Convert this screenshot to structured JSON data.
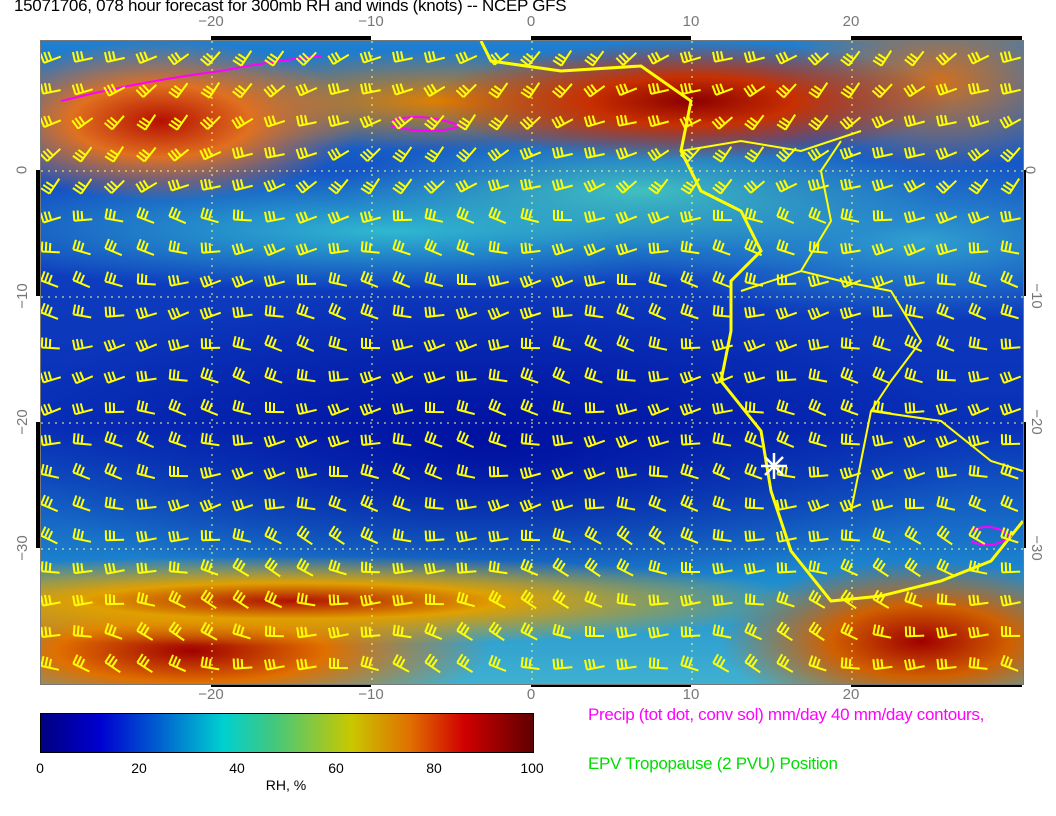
{
  "title": "15071706, 078 hour forecast for 300mb RH and winds (knots) -- NCEP GFS",
  "map": {
    "x_ticks": [
      "−20",
      "−10",
      "0",
      "10",
      "20"
    ],
    "y_ticks": [
      "0",
      "−10",
      "−20",
      "−30"
    ],
    "x_tick_values": [
      -20,
      -10,
      0,
      10,
      20
    ],
    "y_tick_values": [
      0,
      -10,
      -20,
      -30
    ],
    "field": "RH",
    "overlay_colors": {
      "winds": "#ffff00",
      "coastlines": "#ffff00",
      "precip": "#ff00ff",
      "tropopause": "#00ff00"
    },
    "marker_icon": "white-star-icon"
  },
  "colorbar": {
    "ticks": [
      "0",
      "20",
      "40",
      "60",
      "80",
      "100"
    ],
    "label": "RH, %",
    "range": [
      0,
      100
    ],
    "colors": [
      "#000080",
      "#0000d0",
      "#00d0d0",
      "#c8c800",
      "#d00000",
      "#600000"
    ]
  },
  "legend": {
    "precip": "Precip (tot dot, conv sol) mm/day 40 mm/day contours,",
    "tropopause": "EPV Tropopause (2 PVU) Position",
    "precip_color": "#ff00ff",
    "tropopause_color": "#00dd00"
  }
}
